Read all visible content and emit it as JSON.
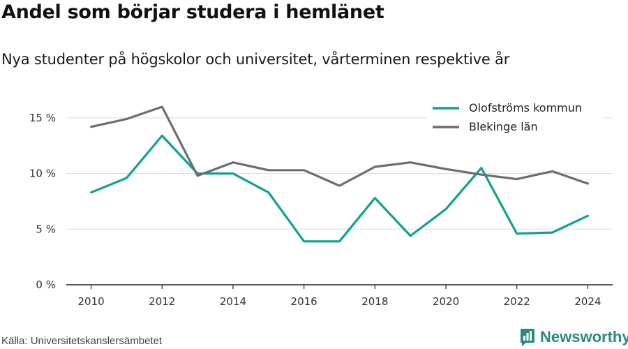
{
  "title": "Andel som börjar studera i hemlänet",
  "subtitle": "Nya studenter på högskolor och universitet, vårterminen respektive år",
  "source": "Källa: Universitetskanslersämbetet",
  "brand": {
    "name": "Newsworthy",
    "icon": "newsworthy-logo-icon",
    "color": "#2a8a7f"
  },
  "chart_data": {
    "type": "line",
    "x": [
      2010,
      2011,
      2012,
      2013,
      2014,
      2015,
      2016,
      2017,
      2018,
      2019,
      2020,
      2021,
      2022,
      2023,
      2024
    ],
    "x_ticks": [
      2010,
      2012,
      2014,
      2016,
      2018,
      2020,
      2022,
      2024
    ],
    "y_ticks": [
      {
        "value": 0,
        "label": "0 %"
      },
      {
        "value": 5,
        "label": "5 %"
      },
      {
        "value": 10,
        "label": "10 %"
      },
      {
        "value": 15,
        "label": "15 %"
      }
    ],
    "xlim": [
      2009.3,
      2024.7
    ],
    "ylim": [
      0,
      16.5
    ],
    "grid": "horizontal",
    "legend_position": "top-right",
    "series": [
      {
        "name": "Olofströms kommun",
        "color": "#0fa193",
        "values": [
          8.3,
          9.6,
          13.4,
          10.0,
          10.0,
          8.3,
          3.9,
          3.9,
          7.8,
          4.4,
          6.8,
          10.5,
          4.6,
          4.7,
          6.2
        ]
      },
      {
        "name": "Blekinge län",
        "color": "#6e6c72",
        "values": [
          14.2,
          14.9,
          16.0,
          9.8,
          11.0,
          10.3,
          10.3,
          8.9,
          10.6,
          11.0,
          10.4,
          9.9,
          9.5,
          10.2,
          9.1
        ]
      }
    ]
  }
}
